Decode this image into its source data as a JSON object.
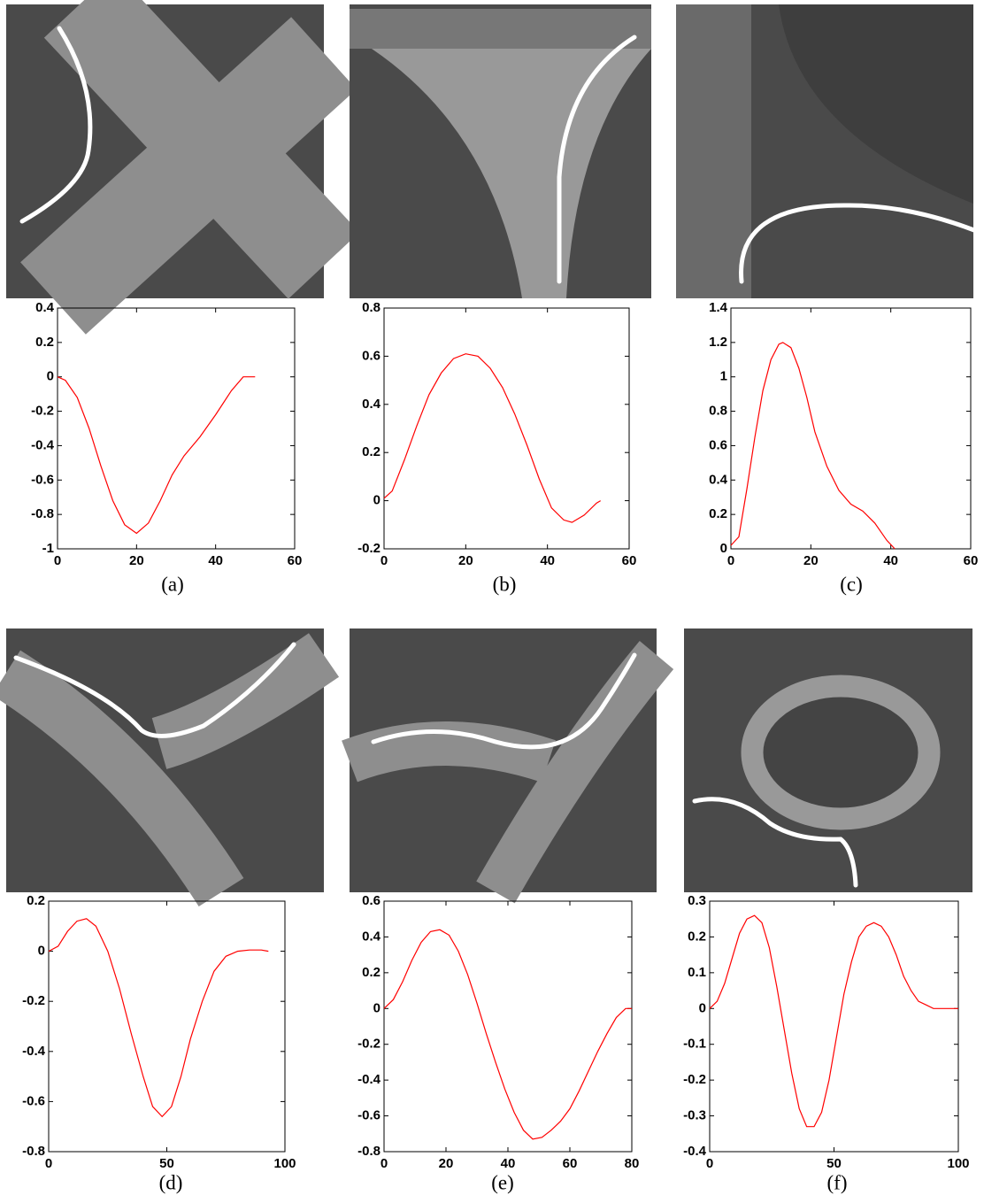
{
  "chart_data": [
    {
      "type": "line",
      "caption": "(a)",
      "color": "#ff0000",
      "x": [
        0,
        2,
        5,
        8,
        11,
        14,
        17,
        20,
        23,
        26,
        29,
        32,
        36,
        40,
        44,
        47,
        50
      ],
      "values": [
        0,
        -0.02,
        -0.12,
        -0.3,
        -0.52,
        -0.72,
        -0.86,
        -0.91,
        -0.85,
        -0.72,
        -0.57,
        -0.46,
        -0.35,
        -0.22,
        -0.08,
        0,
        0
      ],
      "xlim": [
        0,
        60
      ],
      "ylim": [
        -1,
        0.4
      ],
      "xticks": [
        0,
        20,
        40,
        60
      ],
      "yticks": [
        -1,
        -0.8,
        -0.6,
        -0.4,
        -0.2,
        0,
        0.2,
        0.4
      ]
    },
    {
      "type": "line",
      "caption": "(b)",
      "color": "#ff0000",
      "x": [
        0,
        2,
        5,
        8,
        11,
        14,
        17,
        20,
        23,
        26,
        29,
        32,
        35,
        38,
        41,
        44,
        46,
        49,
        52,
        53
      ],
      "values": [
        0.01,
        0.04,
        0.17,
        0.31,
        0.44,
        0.53,
        0.59,
        0.61,
        0.6,
        0.55,
        0.47,
        0.36,
        0.23,
        0.09,
        -0.03,
        -0.08,
        -0.09,
        -0.06,
        -0.01,
        0
      ],
      "xlim": [
        0,
        60
      ],
      "ylim": [
        -0.2,
        0.8
      ],
      "xticks": [
        0,
        20,
        40,
        60
      ],
      "yticks": [
        -0.2,
        0,
        0.2,
        0.4,
        0.6,
        0.8
      ]
    },
    {
      "type": "line",
      "caption": "(c)",
      "color": "#ff0000",
      "x": [
        0,
        2,
        4,
        6,
        8,
        10,
        12,
        13,
        15,
        17,
        19,
        21,
        24,
        27,
        30,
        33,
        36,
        39,
        41
      ],
      "values": [
        0.02,
        0.07,
        0.35,
        0.65,
        0.92,
        1.1,
        1.19,
        1.2,
        1.17,
        1.05,
        0.88,
        0.68,
        0.48,
        0.34,
        0.26,
        0.22,
        0.15,
        0.05,
        0
      ],
      "xlim": [
        0,
        60
      ],
      "ylim": [
        0,
        1.4
      ],
      "xticks": [
        0,
        20,
        40,
        60
      ],
      "yticks": [
        0,
        0.2,
        0.4,
        0.6,
        0.8,
        1,
        1.2,
        1.4
      ]
    },
    {
      "type": "line",
      "caption": "(d)",
      "color": "#ff0000",
      "x": [
        0,
        4,
        8,
        12,
        16,
        20,
        25,
        30,
        35,
        40,
        44,
        48,
        52,
        56,
        60,
        65,
        70,
        75,
        80,
        85,
        90,
        93
      ],
      "values": [
        0,
        0.02,
        0.08,
        0.12,
        0.13,
        0.1,
        0,
        -0.15,
        -0.33,
        -0.5,
        -0.62,
        -0.66,
        -0.62,
        -0.5,
        -0.35,
        -0.2,
        -0.08,
        -0.02,
        0,
        0.005,
        0.005,
        0
      ],
      "xlim": [
        0,
        100
      ],
      "ylim": [
        -0.8,
        0.2
      ],
      "xticks": [
        0,
        50,
        100
      ],
      "yticks": [
        -0.8,
        -0.6,
        -0.4,
        -0.2,
        0,
        0.2
      ]
    },
    {
      "type": "line",
      "caption": "(e)",
      "color": "#ff0000",
      "x": [
        0,
        3,
        6,
        9,
        12,
        15,
        18,
        21,
        24,
        27,
        30,
        33,
        36,
        39,
        42,
        45,
        48,
        51,
        54,
        57,
        60,
        63,
        66,
        69,
        72,
        75,
        78,
        80
      ],
      "values": [
        0,
        0.05,
        0.15,
        0.27,
        0.37,
        0.43,
        0.44,
        0.41,
        0.32,
        0.19,
        0.03,
        -0.14,
        -0.3,
        -0.45,
        -0.58,
        -0.68,
        -0.73,
        -0.72,
        -0.68,
        -0.63,
        -0.56,
        -0.46,
        -0.35,
        -0.24,
        -0.14,
        -0.05,
        0,
        0
      ],
      "xlim": [
        0,
        80
      ],
      "ylim": [
        -0.8,
        0.6
      ],
      "xticks": [
        0,
        20,
        40,
        60,
        80
      ],
      "yticks": [
        -0.8,
        -0.6,
        -0.4,
        -0.2,
        0,
        0.2,
        0.4,
        0.6
      ]
    },
    {
      "type": "line",
      "caption": "(f)",
      "color": "#ff0000",
      "x": [
        0,
        3,
        6,
        9,
        12,
        15,
        18,
        21,
        24,
        27,
        30,
        33,
        36,
        39,
        42,
        45,
        48,
        51,
        54,
        57,
        60,
        63,
        66,
        69,
        72,
        75,
        78,
        81,
        84,
        87,
        90,
        94,
        97,
        100
      ],
      "values": [
        0,
        0.02,
        0.07,
        0.14,
        0.21,
        0.25,
        0.26,
        0.24,
        0.17,
        0.06,
        -0.06,
        -0.18,
        -0.28,
        -0.33,
        -0.33,
        -0.29,
        -0.2,
        -0.08,
        0.04,
        0.13,
        0.2,
        0.23,
        0.24,
        0.23,
        0.2,
        0.15,
        0.09,
        0.05,
        0.02,
        0.01,
        0,
        0,
        0,
        0
      ],
      "xlim": [
        0,
        100
      ],
      "ylim": [
        -0.4,
        0.3
      ],
      "xticks": [
        0,
        50,
        100
      ],
      "yticks": [
        -0.4,
        -0.3,
        -0.2,
        -0.1,
        0,
        0.1,
        0.2,
        0.3
      ]
    }
  ]
}
